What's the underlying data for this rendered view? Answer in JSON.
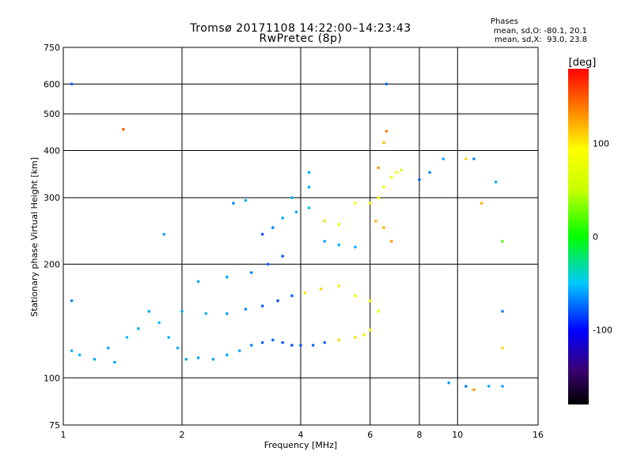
{
  "header": {
    "title_line1": "Tromsø 20171108 14:22:00–14:23:43",
    "title_line2": "RwPretec (8p)"
  },
  "stats": {
    "heading": "Phases",
    "line_o": "mean, sd,O: -80.1, 20.1",
    "line_x": "mean, sd,X:  93.0, 23.8"
  },
  "chart_data": {
    "type": "scatter",
    "xlabel": "Frequency [MHz]",
    "ylabel": "Stationary phase Virtual Height [km]",
    "xscale": "log",
    "yscale": "log",
    "xlim": [
      1,
      16
    ],
    "ylim": [
      75,
      750
    ],
    "xticks": [
      1,
      2,
      4,
      6,
      8,
      10,
      16
    ],
    "yticks": [
      75,
      100,
      200,
      300,
      400,
      500,
      600,
      750
    ],
    "grid": true,
    "colorbar": {
      "label": "[deg]",
      "range": [
        -180,
        180
      ],
      "ticks": [
        -100,
        0,
        100
      ],
      "colormap": "rainbow"
    },
    "series": [
      {
        "values": [
          [
            1.05,
            118,
            -95
          ],
          [
            1.1,
            115,
            -95
          ],
          [
            1.2,
            112,
            -100
          ],
          [
            1.3,
            120,
            -95
          ],
          [
            1.35,
            110,
            -100
          ],
          [
            1.45,
            128,
            -90
          ],
          [
            1.55,
            135,
            -95
          ],
          [
            1.65,
            150,
            -95
          ],
          [
            1.75,
            140,
            -90
          ],
          [
            1.85,
            128,
            -95
          ],
          [
            1.95,
            120,
            -95
          ],
          [
            2.05,
            112,
            -100
          ],
          [
            2.2,
            113,
            -100
          ],
          [
            2.4,
            112,
            -100
          ],
          [
            2.6,
            115,
            -100
          ],
          [
            2.8,
            118,
            -95
          ],
          [
            3.0,
            122,
            -110
          ],
          [
            3.2,
            124,
            -120
          ],
          [
            3.4,
            126,
            -120
          ],
          [
            3.6,
            124,
            -125
          ],
          [
            3.8,
            122,
            -125
          ],
          [
            4.0,
            122,
            -125
          ],
          [
            4.3,
            122,
            -120
          ],
          [
            4.6,
            124,
            -120
          ],
          [
            5.0,
            126,
            110
          ],
          [
            5.5,
            128,
            110
          ],
          [
            5.8,
            130,
            105
          ],
          [
            6.0,
            134,
            90
          ],
          [
            2.0,
            150,
            -95
          ],
          [
            2.3,
            148,
            -95
          ],
          [
            2.6,
            148,
            -100
          ],
          [
            2.9,
            152,
            -105
          ],
          [
            3.2,
            155,
            -120
          ],
          [
            3.5,
            160,
            -125
          ],
          [
            3.8,
            165,
            -120
          ],
          [
            4.1,
            168,
            110
          ],
          [
            4.5,
            172,
            110
          ],
          [
            5.0,
            175,
            105
          ],
          [
            5.5,
            165,
            100
          ],
          [
            6.0,
            160,
            95
          ],
          [
            6.3,
            150,
            90
          ],
          [
            2.2,
            180,
            -95
          ],
          [
            2.6,
            185,
            -100
          ],
          [
            3.0,
            190,
            -110
          ],
          [
            3.3,
            200,
            -120
          ],
          [
            3.6,
            210,
            -125
          ],
          [
            3.2,
            240,
            -125
          ],
          [
            3.4,
            250,
            -110
          ],
          [
            3.6,
            265,
            -95
          ],
          [
            3.9,
            275,
            -95
          ],
          [
            4.2,
            282,
            -90
          ],
          [
            4.6,
            260,
            110
          ],
          [
            5.0,
            255,
            100
          ],
          [
            4.6,
            230,
            -95
          ],
          [
            5.0,
            225,
            -95
          ],
          [
            5.5,
            222,
            -95
          ],
          [
            5.5,
            290,
            100
          ],
          [
            6.0,
            290,
            95
          ],
          [
            6.3,
            300,
            95
          ],
          [
            6.5,
            320,
            100
          ],
          [
            6.8,
            340,
            100
          ],
          [
            7.0,
            350,
            95
          ],
          [
            7.2,
            355,
            85
          ],
          [
            6.2,
            260,
            120
          ],
          [
            6.5,
            250,
            120
          ],
          [
            6.8,
            230,
            130
          ],
          [
            6.3,
            360,
            130
          ],
          [
            6.5,
            420,
            120
          ],
          [
            6.6,
            450,
            140
          ],
          [
            4.2,
            350,
            -95
          ],
          [
            4.2,
            320,
            -95
          ],
          [
            3.8,
            300,
            -95
          ],
          [
            2.7,
            290,
            -110
          ],
          [
            2.9,
            295,
            -95
          ],
          [
            1.42,
            455,
            150
          ],
          [
            1.05,
            600,
            -120
          ],
          [
            1.8,
            240,
            -100
          ],
          [
            1.05,
            160,
            -110
          ],
          [
            6.6,
            600,
            -120
          ],
          [
            9.5,
            97,
            -100
          ],
          [
            10.5,
            95,
            -110
          ],
          [
            11.0,
            93,
            130
          ],
          [
            12.0,
            95,
            -95
          ],
          [
            13.0,
            95,
            -100
          ],
          [
            10.5,
            380,
            110
          ],
          [
            11.0,
            380,
            -105
          ],
          [
            12.5,
            330,
            -95
          ],
          [
            13.0,
            150,
            -110
          ],
          [
            13.0,
            230,
            40
          ],
          [
            13.0,
            120,
            110
          ],
          [
            9.2,
            380,
            -95
          ],
          [
            8.0,
            335,
            -120
          ],
          [
            8.5,
            350,
            -110
          ],
          [
            11.5,
            290,
            120
          ]
        ]
      }
    ]
  }
}
